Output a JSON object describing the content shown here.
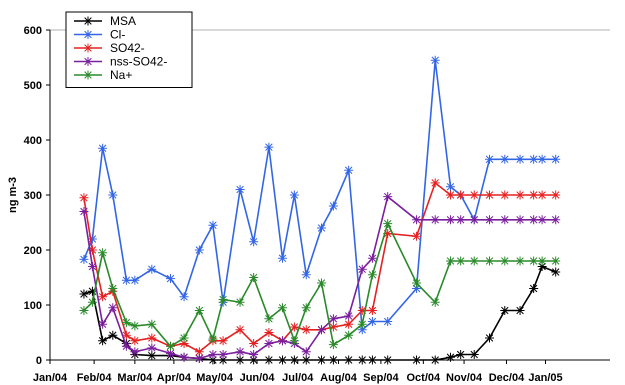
{
  "chart_data": {
    "type": "line",
    "ylabel": "ng m-3",
    "xlabel": "",
    "ylim": [
      0,
      600
    ],
    "yticks": [
      0,
      100,
      200,
      300,
      400,
      500,
      600
    ],
    "xlim": [
      0,
      16.5
    ],
    "xticks": [
      {
        "label": "Jan/04",
        "x": 0
      },
      {
        "label": "Feb/04",
        "x": 1.3
      },
      {
        "label": "Mar/04",
        "x": 2.5
      },
      {
        "label": "Apr/04",
        "x": 3.65
      },
      {
        "label": "May/04",
        "x": 4.85
      },
      {
        "label": "Jun/04",
        "x": 6.1
      },
      {
        "label": "Jul/04",
        "x": 7.3
      },
      {
        "label": "Aug/04",
        "x": 8.5
      },
      {
        "label": "Sep/04",
        "x": 9.75
      },
      {
        "label": "Oct/04",
        "x": 11.0
      },
      {
        "label": "Nov/04",
        "x": 12.2
      },
      {
        "label": "Dec/04",
        "x": 13.45
      },
      {
        "label": "Jan/05",
        "x": 14.6
      }
    ],
    "x": [
      1.0,
      1.25,
      1.55,
      1.85,
      2.25,
      2.5,
      3.0,
      3.55,
      3.95,
      4.4,
      4.8,
      5.1,
      5.6,
      6.0,
      6.45,
      6.85,
      7.2,
      7.55,
      8.0,
      8.35,
      8.8,
      9.2,
      9.5,
      9.95,
      10.8,
      11.35,
      11.8,
      12.1,
      12.5,
      12.95,
      13.4,
      13.85,
      14.25,
      14.5,
      14.9
    ],
    "series": [
      {
        "name": "MSA",
        "color": "#000000",
        "values": [
          120,
          125,
          35,
          45,
          30,
          10,
          8,
          8,
          5,
          3,
          0,
          0,
          0,
          0,
          0,
          0,
          0,
          0,
          0,
          0,
          0,
          0,
          0,
          0,
          0,
          0,
          5,
          10,
          10,
          40,
          90,
          90,
          130,
          170,
          160
        ]
      },
      {
        "name": "Cl-",
        "color": "#3366e6",
        "values": [
          183,
          220,
          385,
          300,
          145,
          145,
          165,
          148,
          115,
          200,
          245,
          105,
          310,
          215,
          387,
          185,
          300,
          155,
          240,
          280,
          345,
          55,
          70,
          70,
          130,
          545,
          315,
          300,
          255,
          365,
          365,
          365,
          365,
          365,
          365
        ]
      },
      {
        "name": "SO42-",
        "color": "#e62020",
        "values": [
          295,
          200,
          115,
          125,
          45,
          35,
          40,
          25,
          30,
          15,
          35,
          35,
          55,
          30,
          50,
          35,
          60,
          55,
          55,
          60,
          65,
          90,
          90,
          230,
          225,
          322,
          300,
          300,
          300,
          300,
          300,
          300,
          300,
          300,
          300
        ]
      },
      {
        "name": "nss-SO42-",
        "color": "#7a1f9e",
        "values": [
          270,
          170,
          65,
          95,
          25,
          15,
          22,
          12,
          5,
          3,
          10,
          10,
          15,
          10,
          30,
          35,
          30,
          15,
          55,
          75,
          80,
          165,
          185,
          297,
          255,
          255,
          255,
          255,
          255,
          255,
          255,
          255,
          255,
          255,
          255
        ]
      },
      {
        "name": "Na+",
        "color": "#2a8a2a",
        "values": [
          90,
          105,
          195,
          130,
          68,
          62,
          65,
          25,
          40,
          90,
          38,
          110,
          105,
          150,
          75,
          95,
          35,
          95,
          140,
          28,
          45,
          65,
          155,
          248,
          140,
          105,
          180,
          180,
          180,
          180,
          180,
          180,
          180,
          180,
          180
        ]
      }
    ],
    "legend_position": "top-left",
    "grid": {
      "y_major": [
        600
      ],
      "x": false
    },
    "colors": {
      "background": "#ffffff",
      "axis": "#000000",
      "grid": "#b0b0b0"
    }
  }
}
